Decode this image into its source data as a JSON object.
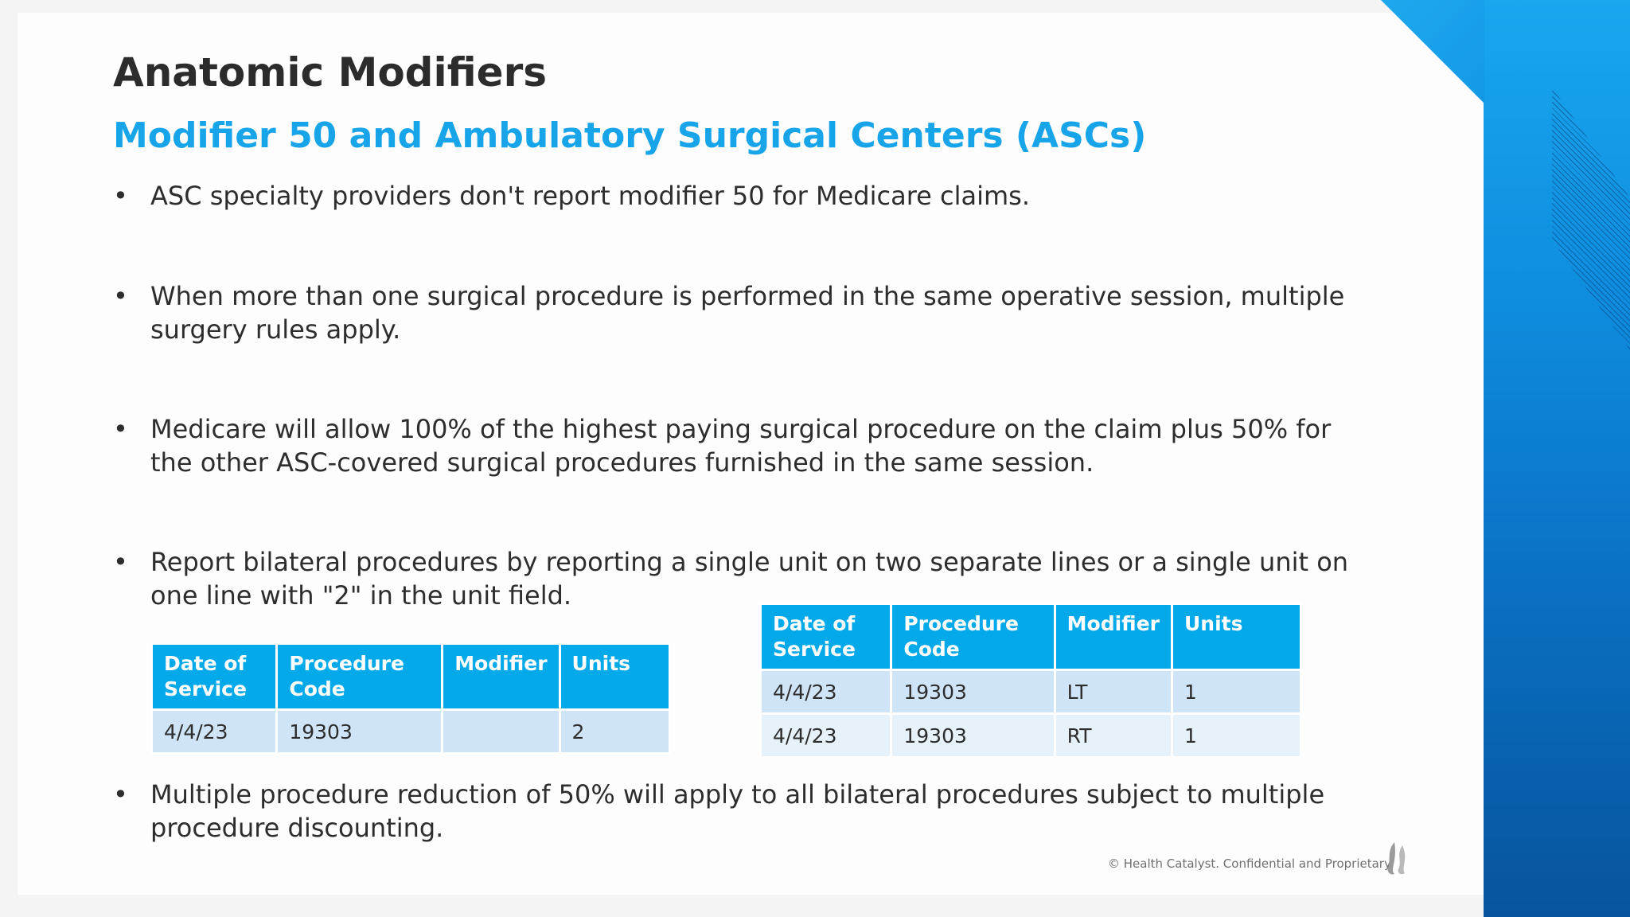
{
  "slide": {
    "title": "Anatomic Modifiers",
    "subtitle": "Modifier 50 and Ambulatory Surgical Centers (ASCs)",
    "bullet_symbol": "•",
    "bullets": [
      "ASC specialty providers don't report modifier 50 for Medicare claims.",
      "When more than one surgical procedure is performed in the same operative session, multiple surgery rules apply.",
      "Medicare will allow 100% of the highest paying surgical procedure on the claim plus 50% for the other ASC-covered surgical procedures furnished in the same session.",
      "Report bilateral procedures by reporting a single unit on two separate lines or a single unit on one line with \"2\" in the unit field.",
      "Multiple procedure reduction of 50% will apply to all bilateral procedures subject to multiple procedure discounting."
    ],
    "footer": "© Health Catalyst. Confidential and Proprietary."
  },
  "table_single_line": {
    "headers": [
      "Date of Service",
      "Procedure Code",
      "Modifier",
      "Units"
    ],
    "rows": [
      [
        "4/4/23",
        "19303",
        "",
        "2"
      ]
    ]
  },
  "table_two_lines": {
    "headers": [
      "Date of Service",
      "Procedure Code",
      "Modifier",
      "Units"
    ],
    "rows": [
      [
        "4/4/23",
        "19303",
        "LT",
        "1"
      ],
      [
        "4/4/23",
        "19303",
        "RT",
        "1"
      ]
    ]
  },
  "colors": {
    "accent_blue": "#17a4e8",
    "table_header": "#04a9ea",
    "band_top": "#1aa7ee",
    "band_bottom": "#07549c"
  },
  "icons": {
    "logo": "health-catalyst-flame-logo"
  }
}
